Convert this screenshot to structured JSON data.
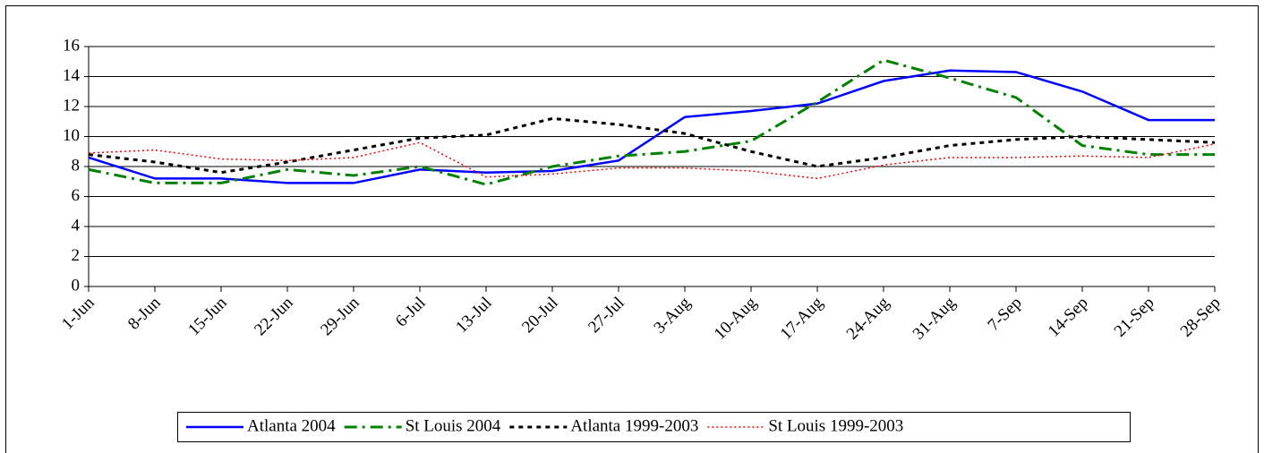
{
  "chart_data": {
    "type": "line",
    "categories": [
      "1-Jun",
      "8-Jun",
      "15-Jun",
      "22-Jun",
      "29-Jun",
      "6-Jul",
      "13-Jul",
      "20-Jul",
      "27-Jul",
      "3-Aug",
      "10-Aug",
      "17-Aug",
      "24-Aug",
      "31-Aug",
      "7-Sep",
      "14-Sep",
      "21-Sep",
      "28-Sep"
    ],
    "series": [
      {
        "name": "Atlanta 2004",
        "color": "#0000ff",
        "values": [
          8.6,
          7.2,
          7.2,
          6.9,
          6.9,
          7.8,
          7.6,
          7.7,
          8.4,
          11.3,
          11.7,
          12.2,
          13.7,
          14.4,
          14.3,
          13.0,
          11.1,
          11.1
        ]
      },
      {
        "name": "St Louis 2004",
        "color": "#008000",
        "values": [
          7.8,
          6.9,
          6.9,
          7.8,
          7.4,
          8.0,
          6.8,
          8.0,
          8.7,
          9.0,
          9.7,
          12.3,
          15.1,
          13.9,
          12.6,
          9.4,
          8.8,
          8.8
        ]
      },
      {
        "name": "Atlanta 1999-2003",
        "color": "#000000",
        "values": [
          8.8,
          8.3,
          7.6,
          8.3,
          9.1,
          9.9,
          10.1,
          11.2,
          10.8,
          10.2,
          9.0,
          8.0,
          8.6,
          9.4,
          9.8,
          10.0,
          9.8,
          9.6
        ]
      },
      {
        "name": "St Louis 1999-2003",
        "color": "#ff0000",
        "values": [
          8.9,
          9.1,
          8.5,
          8.4,
          8.6,
          9.6,
          7.3,
          7.5,
          7.9,
          7.9,
          7.7,
          7.2,
          8.1,
          8.6,
          8.6,
          8.7,
          8.6,
          9.5
        ]
      }
    ],
    "ylim": [
      0,
      16
    ],
    "yticks": [
      0,
      2,
      4,
      6,
      8,
      10,
      12,
      14,
      16
    ],
    "grid": true,
    "legend": "bottom"
  }
}
